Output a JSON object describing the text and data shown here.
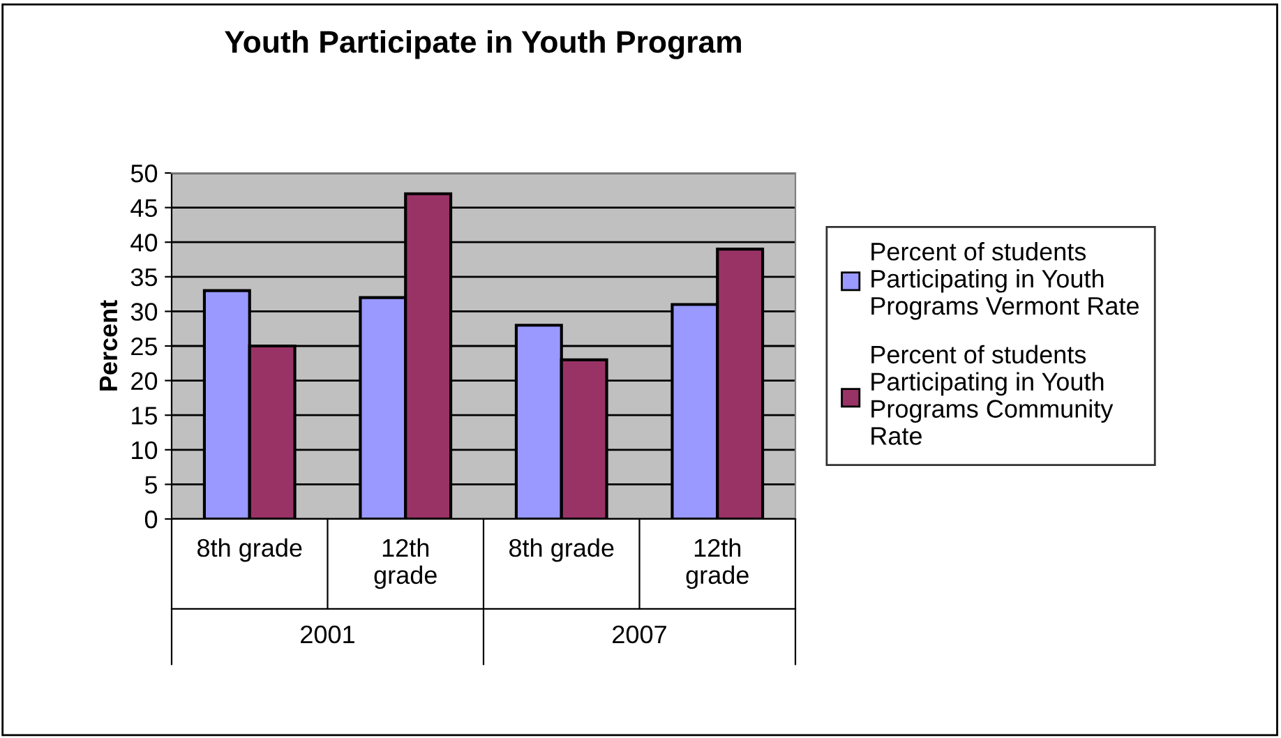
{
  "chart_data": {
    "type": "bar",
    "title": "Youth Participate in Youth Program",
    "ylabel": "Percent",
    "categories": [
      "8th grade",
      "12th\ngrade",
      "8th grade",
      "12th\ngrade"
    ],
    "series": [
      {
        "name": "Percent of students\nParticipating in Youth\nPrograms Vermont Rate",
        "color": "#9999ff",
        "values": [
          33,
          32,
          28,
          31
        ]
      },
      {
        "name": "Percent of students\nParticipating in Youth\nPrograms Community\nRate",
        "color": "#993366",
        "values": [
          25,
          47,
          23,
          39
        ]
      }
    ],
    "annotations": [
      "2001",
      "2007"
    ],
    "ylim": [
      0,
      50
    ],
    "yticks": [
      0,
      5,
      10,
      15,
      20,
      25,
      30,
      35,
      40,
      45,
      50
    ],
    "grid": "y",
    "legend": "right"
  }
}
